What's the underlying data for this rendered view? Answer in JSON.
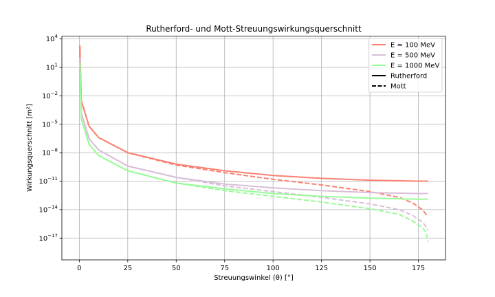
{
  "chart_data": {
    "type": "line",
    "title": "Rutherford- und Mott-Streuungswirkungsquerschnitt",
    "xlabel": "Streuungswinkel (θ) [°]",
    "ylabel": "Wirkungsquerschnitt [m²]",
    "x_ticks": [
      "0",
      "25",
      "50",
      "75",
      "100",
      "125",
      "150",
      "175"
    ],
    "y_ticks": [
      {
        "base": "10",
        "exp": "4"
      },
      {
        "base": "10",
        "exp": "1"
      },
      {
        "base": "10",
        "exp": "−2"
      },
      {
        "base": "10",
        "exp": "−5"
      },
      {
        "base": "10",
        "exp": "−8"
      },
      {
        "base": "10",
        "exp": "−11"
      },
      {
        "base": "10",
        "exp": "−14"
      },
      {
        "base": "10",
        "exp": "−17"
      }
    ],
    "xlim": [
      -9,
      189
    ],
    "ylim_log10": [
      -19.3,
      4.3
    ],
    "y_scale": "log",
    "grid": true,
    "legend_position": "top-right",
    "legend": [
      {
        "label": "E = 100 MeV",
        "color": "#fa8072",
        "style": "solid"
      },
      {
        "label": "E = 500 MeV",
        "color": "#d8bfd8",
        "style": "solid"
      },
      {
        "label": "E = 1000 MeV",
        "color": "#98fb98",
        "style": "solid"
      },
      {
        "label": "Rutherford",
        "color": "#000000",
        "style": "solid"
      },
      {
        "label": "Mott",
        "color": "#000000",
        "style": "dashed"
      }
    ],
    "series": [
      {
        "energy": "E = 100 MeV",
        "model": "Rutherford",
        "color": "#fa8072",
        "dash": false,
        "log10_y": [
          [
            0.3,
            3.3
          ],
          [
            1,
            -2.5
          ],
          [
            5,
            -5.2
          ],
          [
            10,
            -6.4
          ],
          [
            25,
            -8.0
          ],
          [
            50,
            -9.2
          ],
          [
            75,
            -9.9
          ],
          [
            100,
            -10.4
          ],
          [
            125,
            -10.7
          ],
          [
            150,
            -10.9
          ],
          [
            175,
            -11.0
          ],
          [
            180,
            -11.0
          ]
        ]
      },
      {
        "energy": "E = 100 MeV",
        "model": "Mott",
        "color": "#fa8072",
        "dash": true,
        "log10_y": [
          [
            0.3,
            3.3
          ],
          [
            1,
            -2.5
          ],
          [
            5,
            -5.2
          ],
          [
            10,
            -6.4
          ],
          [
            25,
            -8.0
          ],
          [
            50,
            -9.3
          ],
          [
            75,
            -10.1
          ],
          [
            100,
            -10.8
          ],
          [
            125,
            -11.4
          ],
          [
            150,
            -12.1
          ],
          [
            165,
            -12.7
          ],
          [
            172,
            -13.3
          ],
          [
            177,
            -14.0
          ],
          [
            179,
            -14.5
          ],
          [
            180,
            -14.7
          ]
        ]
      },
      {
        "energy": "E = 500 MeV",
        "model": "Rutherford",
        "color": "#d8bfd8",
        "dash": false,
        "log10_y": [
          [
            0.3,
            2.0
          ],
          [
            1,
            -3.8
          ],
          [
            5,
            -6.5
          ],
          [
            10,
            -7.7
          ],
          [
            25,
            -9.4
          ],
          [
            50,
            -10.6
          ],
          [
            75,
            -11.3
          ],
          [
            100,
            -11.7
          ],
          [
            125,
            -12.0
          ],
          [
            150,
            -12.2
          ],
          [
            175,
            -12.3
          ],
          [
            180,
            -12.3
          ]
        ]
      },
      {
        "energy": "E = 500 MeV",
        "model": "Mott",
        "color": "#d8bfd8",
        "dash": true,
        "log10_y": [
          [
            0.3,
            2.0
          ],
          [
            1,
            -3.8
          ],
          [
            5,
            -6.5
          ],
          [
            10,
            -7.7
          ],
          [
            25,
            -9.4
          ],
          [
            50,
            -10.6
          ],
          [
            75,
            -11.5
          ],
          [
            100,
            -12.1
          ],
          [
            125,
            -12.7
          ],
          [
            150,
            -13.4
          ],
          [
            165,
            -14.0
          ],
          [
            172,
            -14.6
          ],
          [
            177,
            -15.3
          ],
          [
            179,
            -15.8
          ],
          [
            180,
            -16.2
          ]
        ]
      },
      {
        "energy": "E = 1000 MeV",
        "model": "Rutherford",
        "color": "#98fb98",
        "dash": false,
        "log10_y": [
          [
            0.3,
            1.5
          ],
          [
            1,
            -4.4
          ],
          [
            5,
            -7.1
          ],
          [
            10,
            -8.3
          ],
          [
            25,
            -9.9
          ],
          [
            50,
            -11.2
          ],
          [
            75,
            -11.8
          ],
          [
            100,
            -12.3
          ],
          [
            125,
            -12.6
          ],
          [
            150,
            -12.8
          ],
          [
            175,
            -12.9
          ],
          [
            180,
            -12.9
          ]
        ]
      },
      {
        "energy": "E = 1000 MeV",
        "model": "Mott",
        "color": "#98fb98",
        "dash": true,
        "log10_y": [
          [
            0.3,
            1.5
          ],
          [
            1,
            -4.4
          ],
          [
            5,
            -7.1
          ],
          [
            10,
            -8.3
          ],
          [
            25,
            -9.9
          ],
          [
            50,
            -11.2
          ],
          [
            75,
            -12.0
          ],
          [
            100,
            -12.6
          ],
          [
            125,
            -13.2
          ],
          [
            150,
            -13.9
          ],
          [
            165,
            -14.5
          ],
          [
            172,
            -15.2
          ],
          [
            177,
            -15.9
          ],
          [
            179,
            -16.4
          ],
          [
            180,
            -17.4
          ]
        ]
      }
    ]
  }
}
